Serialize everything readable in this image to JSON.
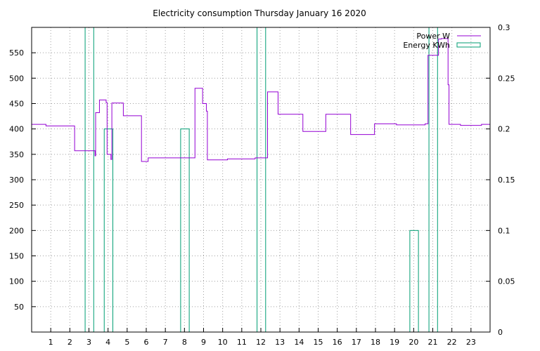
{
  "chart_data": {
    "type": "line",
    "title": "Electricity consumption Thursday January 16 2020",
    "x_ticks": [
      "1",
      "2",
      "3",
      "4",
      "5",
      "6",
      "7",
      "8",
      "9",
      "10",
      "11",
      "12",
      "13",
      "14",
      "15",
      "16",
      "17",
      "18",
      "19",
      "20",
      "21",
      "22",
      "23"
    ],
    "xlim": [
      0,
      24
    ],
    "y_ticks": [
      50,
      100,
      150,
      200,
      250,
      300,
      350,
      400,
      450,
      500,
      550
    ],
    "ylim": [
      0,
      600
    ],
    "y2_ticks": [
      {
        "value": 0,
        "label": "0"
      },
      {
        "value": 0.05,
        "label": "0.05"
      },
      {
        "value": 0.1,
        "label": "0.1"
      },
      {
        "value": 0.15,
        "label": "0.15"
      },
      {
        "value": 0.2,
        "label": "0.2"
      },
      {
        "value": 0.25,
        "label": "0.25"
      },
      {
        "value": 0.3,
        "label": "0.3"
      }
    ],
    "y2lim": [
      0,
      0.3
    ],
    "grid": true,
    "legend_position": "top-right",
    "series": [
      {
        "name": "Power W",
        "color": "#9400d3",
        "style": "steps",
        "points": [
          [
            0,
            409
          ],
          [
            0.75,
            406
          ],
          [
            2.25,
            357
          ],
          [
            3.3,
            357
          ],
          [
            3.32,
            347
          ],
          [
            3.35,
            432
          ],
          [
            3.55,
            457
          ],
          [
            3.9,
            452
          ],
          [
            3.95,
            350
          ],
          [
            4.15,
            340
          ],
          [
            4.2,
            451
          ],
          [
            4.8,
            426
          ],
          [
            5.75,
            336
          ],
          [
            6.1,
            343
          ],
          [
            8.55,
            480
          ],
          [
            8.95,
            450
          ],
          [
            9.15,
            435
          ],
          [
            9.2,
            339
          ],
          [
            10.25,
            341
          ],
          [
            11.7,
            343
          ],
          [
            12.35,
            473
          ],
          [
            12.9,
            429
          ],
          [
            14.2,
            395
          ],
          [
            15.4,
            429
          ],
          [
            16.7,
            389
          ],
          [
            17.95,
            410
          ],
          [
            19.1,
            408
          ],
          [
            20.6,
            410
          ],
          [
            20.75,
            545
          ],
          [
            21.3,
            577
          ],
          [
            21.45,
            578
          ],
          [
            21.8,
            487
          ],
          [
            21.85,
            409
          ],
          [
            22.45,
            407
          ],
          [
            23.55,
            409
          ],
          [
            24,
            409
          ]
        ]
      },
      {
        "name": "Energy KWh",
        "color": "#009e73",
        "style": "boxes",
        "bars": [
          {
            "x0": 2.8,
            "x1": 3.25,
            "value": 0.3
          },
          {
            "x0": 3.8,
            "x1": 4.25,
            "value": 0.2
          },
          {
            "x0": 7.8,
            "x1": 8.25,
            "value": 0.2
          },
          {
            "x0": 11.8,
            "x1": 12.25,
            "value": 0.3
          },
          {
            "x0": 19.8,
            "x1": 20.25,
            "value": 0.1
          },
          {
            "x0": 20.8,
            "x1": 21.25,
            "value": 0.3
          }
        ]
      }
    ]
  }
}
